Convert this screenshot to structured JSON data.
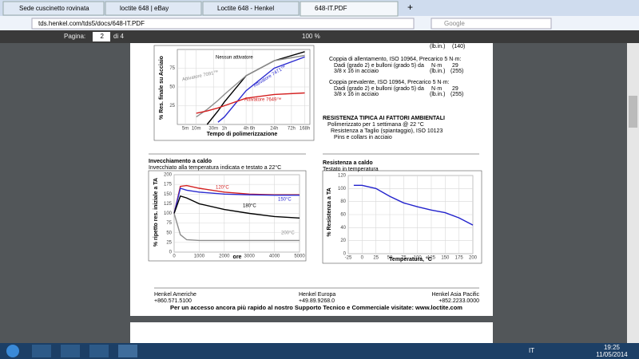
{
  "browser": {
    "tabs": [
      "Sede cuscinetto rovinata",
      "loctite 648 | eBay",
      "Loctite 648 - Henkel",
      "648-IT.PDF"
    ],
    "url": "tds.henkel.com/tds5/docs/648-IT.PDF",
    "search": "Google"
  },
  "pdf_toolbar": {
    "page_label": "Pagina:",
    "page": "2",
    "page_total": "di 4",
    "zoom": "100 %"
  },
  "document": {
    "top_lines": [
      "(lb.in.)",
      "(140)"
    ],
    "breakaway": {
      "title": "Coppia di allentamento, ISO 10964, Precarico  5 N·m:",
      "row1": [
        "Dadi (grado 2) e bulloni (grado 5) da",
        "N·m",
        "29"
      ],
      "row2": [
        "3/8 x 16 in acciaio",
        "(lb.in.)",
        "(255)"
      ]
    },
    "prevailing": {
      "title": "Coppia prevalente, ISO 10964, Precarico  5 N·m:",
      "row1": [
        "Dadi (grado 2) e bulloni (grado 5) da",
        "N·m",
        "29"
      ],
      "row2": [
        "3/8 x 16 in acciaio",
        "(lb.in.)",
        "(255)"
      ]
    },
    "environment": {
      "title": "RESISTENZA TIPICA AI FATTORI AMBIENTALI",
      "lines": [
        "Polimerizzato per 1  settimana @ 22 °C",
        "Resistenza a Taglio (spiantaggio), ISO 10123",
        "Pins e collars in acciaio"
      ]
    },
    "footer": {
      "americas": [
        "Henkel Americhe",
        "+860.571.5100"
      ],
      "europe": [
        "Henkel Europa",
        "+49.89.9268.0"
      ],
      "asia": [
        "Henkel Asia Pacific",
        "+852.2233.0000"
      ],
      "note": "Per un accesso ancora più rapido al nostro Supporto Tecnico e Commerciale visitate: www.loctite.com"
    }
  },
  "chart_data": [
    {
      "type": "line",
      "y_label": "% Res. finale su Acciaio",
      "x_label": "Tempo di polimerizzazione",
      "log_x": true,
      "grid": true,
      "xlim": [
        3,
        14000
      ],
      "xticks": [
        {
          "value": 5,
          "label": "5m"
        },
        {
          "value": 10,
          "label": "10m"
        },
        {
          "value": 30,
          "label": "30m"
        },
        {
          "value": 60,
          "label": "1h"
        },
        {
          "value": 240,
          "label": "4h"
        },
        {
          "value": 360,
          "label": "6h"
        },
        {
          "value": 1440,
          "label": "24h"
        },
        {
          "value": 4320,
          "label": "72h"
        },
        {
          "value": 10080,
          "label": "168h"
        }
      ],
      "ylim": [
        0,
        100
      ],
      "yticks": [
        25,
        50,
        75
      ],
      "x": [
        10,
        20,
        40,
        60,
        240,
        1440,
        10080
      ],
      "series": [
        {
          "name": "Nessun attivatore",
          "color": "#000000",
          "values": [
            null,
            0,
            18,
            30,
            65,
            85,
            97
          ]
        },
        {
          "name": "Attivatore 7471™",
          "color": "#2b2bd0",
          "values": [
            null,
            null,
            3,
            10,
            45,
            75,
            90
          ]
        },
        {
          "name": "Attivatore 7091™",
          "color": "#8c8c8c",
          "values": [
            10,
            20,
            32,
            40,
            65,
            85,
            92
          ]
        },
        {
          "name": "Attivatore 7649™",
          "color": "#d42020",
          "values": [
            15,
            18,
            22,
            25,
            35,
            40,
            42
          ]
        }
      ]
    },
    {
      "type": "line",
      "title": "Invecchiamento a caldo",
      "subtitle": "Invecchiato alla temperatura indicata e testato a 22°C",
      "y_label": "% ripetto res. iniziale a TA",
      "x_label": "ore",
      "grid": true,
      "xlim": [
        0,
        5000
      ],
      "xticks": [
        0,
        1000,
        2000,
        3000,
        4000,
        5000
      ],
      "ylim": [
        0,
        200
      ],
      "yticks": [
        0,
        25,
        50,
        75,
        100,
        125,
        150,
        175,
        200
      ],
      "x": [
        0,
        250,
        500,
        1000,
        2000,
        3000,
        4000,
        5000
      ],
      "series": [
        {
          "name": "120°C",
          "color": "#d42020",
          "values": [
            100,
            170,
            172,
            165,
            155,
            150,
            148,
            148
          ]
        },
        {
          "name": "150°C",
          "color": "#2b2bd0",
          "values": [
            100,
            165,
            160,
            155,
            150,
            148,
            147,
            147
          ]
        },
        {
          "name": "180°C",
          "color": "#000000",
          "values": [
            100,
            145,
            140,
            125,
            110,
            100,
            92,
            88
          ]
        },
        {
          "name": "200°C",
          "color": "#8c8c8c",
          "values": [
            100,
            45,
            32,
            30,
            30,
            30,
            30,
            30
          ]
        }
      ]
    },
    {
      "type": "line",
      "title": "Resistenza a caldo",
      "subtitle": "Testato in temperatura",
      "y_label": "% Resistenza a TA",
      "x_label": "Temperatura, °C",
      "grid": true,
      "xlim": [
        -25,
        200
      ],
      "xticks": [
        -25,
        0,
        25,
        50,
        75,
        100,
        125,
        150,
        175,
        200
      ],
      "ylim": [
        0,
        120
      ],
      "yticks": [
        0,
        20,
        40,
        60,
        80,
        100,
        120
      ],
      "x": [
        -15,
        0,
        25,
        50,
        75,
        100,
        125,
        150,
        175,
        200
      ],
      "series": [
        {
          "color": "#2222cc",
          "values": [
            105,
            105,
            100,
            88,
            78,
            72,
            67,
            63,
            55,
            44
          ]
        }
      ]
    }
  ],
  "taskbar": {
    "language": "IT",
    "time": "19:25",
    "date": "11/05/2014"
  }
}
